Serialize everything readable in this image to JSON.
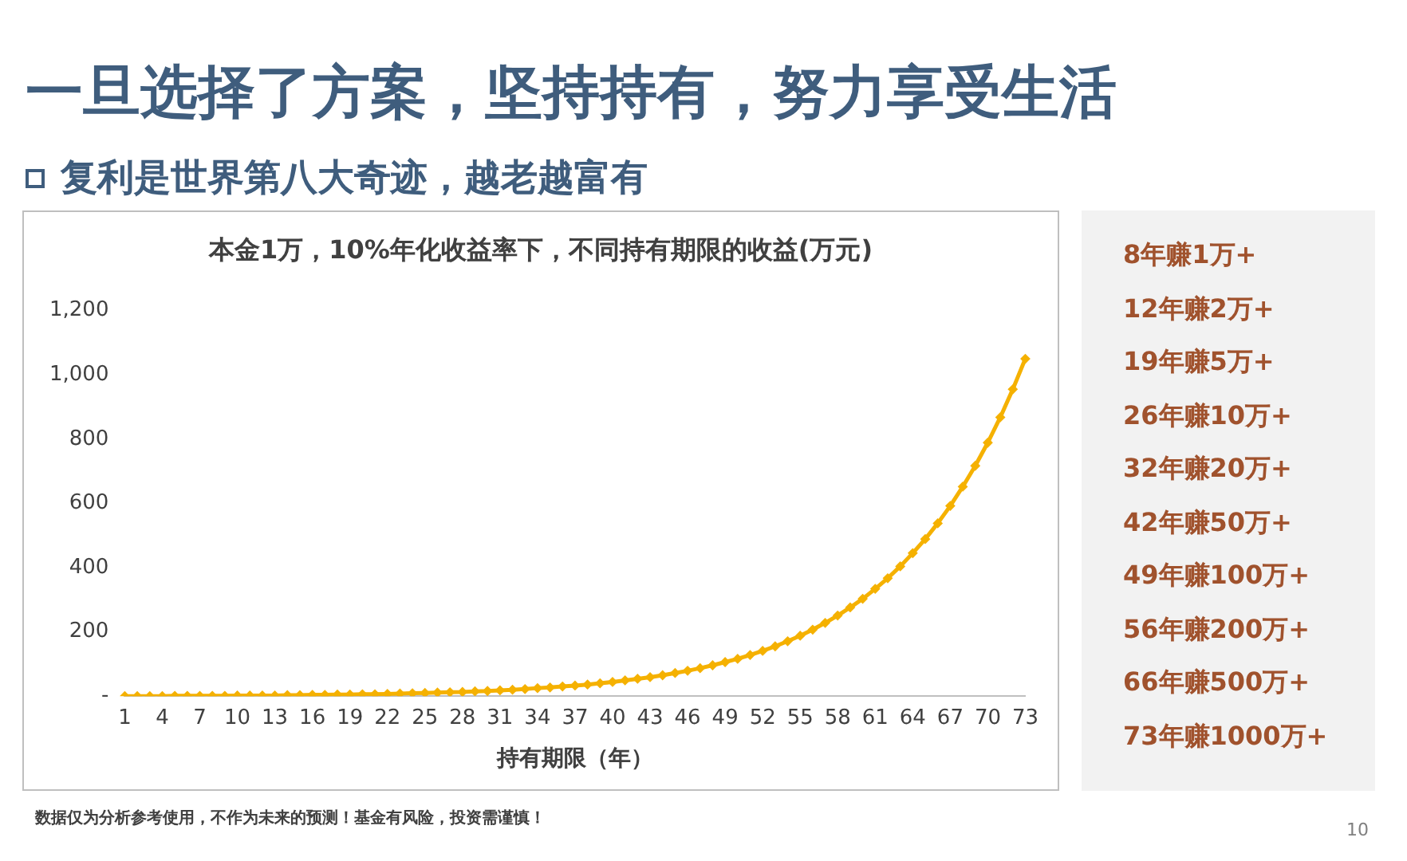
{
  "chart_data": {
    "type": "line",
    "title": "一旦选择了方案，坚持持有，努力享受生活",
    "subtitle": "复利是世界第八大奇迹，越老越富有",
    "xlabel": "持有期限（年）",
    "categories": [
      "1",
      null,
      null,
      "4",
      null,
      null,
      "7",
      null,
      null,
      "10",
      null,
      null,
      "13",
      null,
      null,
      "16",
      null,
      null,
      "19",
      null,
      null,
      "22",
      null,
      null,
      "25",
      null,
      null,
      "28",
      null,
      null,
      "31",
      null,
      null,
      "34",
      null,
      null,
      "37",
      null,
      null,
      "40",
      null,
      null,
      "43",
      null,
      null,
      "46",
      null,
      null,
      "49",
      null,
      null,
      "52",
      null,
      null,
      "55",
      null,
      null,
      "58",
      null,
      null,
      "61",
      null,
      null,
      "64",
      null,
      null,
      "67",
      null,
      null,
      "70",
      null,
      null,
      "73"
    ],
    "series": [
      {
        "color": "#f5b100",
        "values": [
          0,
          0,
          0,
          0,
          1,
          1,
          1,
          1,
          1,
          2,
          2,
          2,
          2,
          3,
          3,
          4,
          4,
          5,
          5,
          6,
          6,
          7,
          8,
          9,
          10,
          11,
          12,
          13,
          15,
          16,
          18,
          20,
          22,
          25,
          27,
          30,
          33,
          36,
          40,
          44,
          49,
          54,
          59,
          65,
          72,
          79,
          87,
          96,
          106,
          116,
          128,
          141,
          155,
          171,
          188,
          207,
          228,
          251,
          276,
          303,
          334,
          367,
          404,
          445,
          489,
          538,
          592,
          652,
          717,
          789,
          868,
          955,
          1050
        ]
      }
    ],
    "ylim": [
      0,
      1200
    ],
    "yticks": [
      {
        "value": 0,
        "label": "-"
      },
      200,
      400,
      600,
      800,
      {
        "value": 1000,
        "label": "1,000"
      },
      {
        "value": 1200,
        "label": "1,200"
      }
    ],
    "grid": false,
    "legend": false,
    "marker": "diamond",
    "line_style": "solid",
    "annotations": [
      "本金1万，10%年化收益率下，不同持有期限的收益(万元)",
      "8年赚1万+",
      "12年赚2万+",
      "19年赚5万+",
      "26年赚10万+",
      "32年赚20万+",
      "42年赚50万+",
      "49年赚100万+",
      "56年赚200万+",
      "66年赚500万+",
      "73年赚1000万+",
      "数据仅为分析参考使用，不作为未来的预测！基金有风险，投资需谨慎！",
      "10"
    ]
  }
}
